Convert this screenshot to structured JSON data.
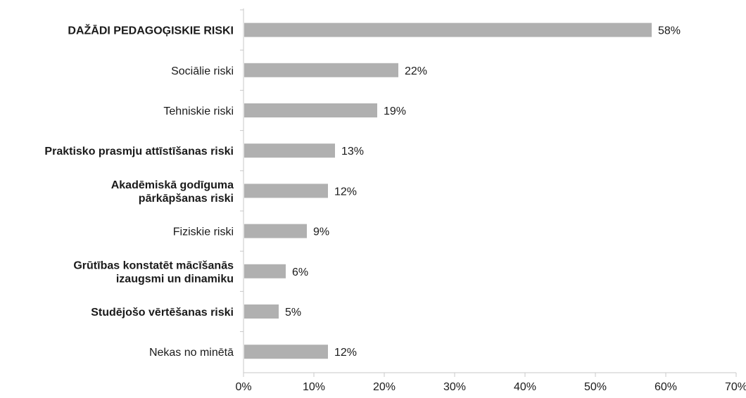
{
  "chart_data": {
    "type": "bar",
    "orientation": "horizontal",
    "categories": [
      {
        "lines": [
          "DAŽĀDI PEDAGOĢISKIE RISKI"
        ],
        "bold": true
      },
      {
        "lines": [
          "Sociālie riski"
        ],
        "bold": false
      },
      {
        "lines": [
          "Tehniskie riski"
        ],
        "bold": false
      },
      {
        "lines": [
          "Praktisko prasmju attīstīšanas riski"
        ],
        "bold": true
      },
      {
        "lines": [
          "Akadēmiskā godīguma",
          "pārkāpšanas riski"
        ],
        "bold": true
      },
      {
        "lines": [
          "Fiziskie riski"
        ],
        "bold": false
      },
      {
        "lines": [
          "Grūtības konstatēt mācīšanās",
          "izaugsmi un dinamiku"
        ],
        "bold": true
      },
      {
        "lines": [
          "Studējošo vērtēšanas riski"
        ],
        "bold": true
      },
      {
        "lines": [
          "Nekas no minētā"
        ],
        "bold": false
      }
    ],
    "values": [
      58,
      22,
      19,
      13,
      12,
      9,
      6,
      5,
      12
    ],
    "data_labels": [
      "58%",
      "22%",
      "19%",
      "13%",
      "12%",
      "9%",
      "6%",
      "5%",
      "12%"
    ],
    "xlim": [
      0,
      70
    ],
    "x_ticks": [
      0,
      10,
      20,
      30,
      40,
      50,
      60,
      70
    ],
    "x_tick_labels": [
      "0%",
      "10%",
      "20%",
      "30%",
      "40%",
      "50%",
      "60%",
      "70%"
    ],
    "grid": false,
    "legend": "none",
    "title": "",
    "xlabel": "",
    "ylabel": "",
    "bar_color": "#b0b0b0",
    "axis_color": "#c8c8c8",
    "text_color": "#1a1a1a"
  }
}
